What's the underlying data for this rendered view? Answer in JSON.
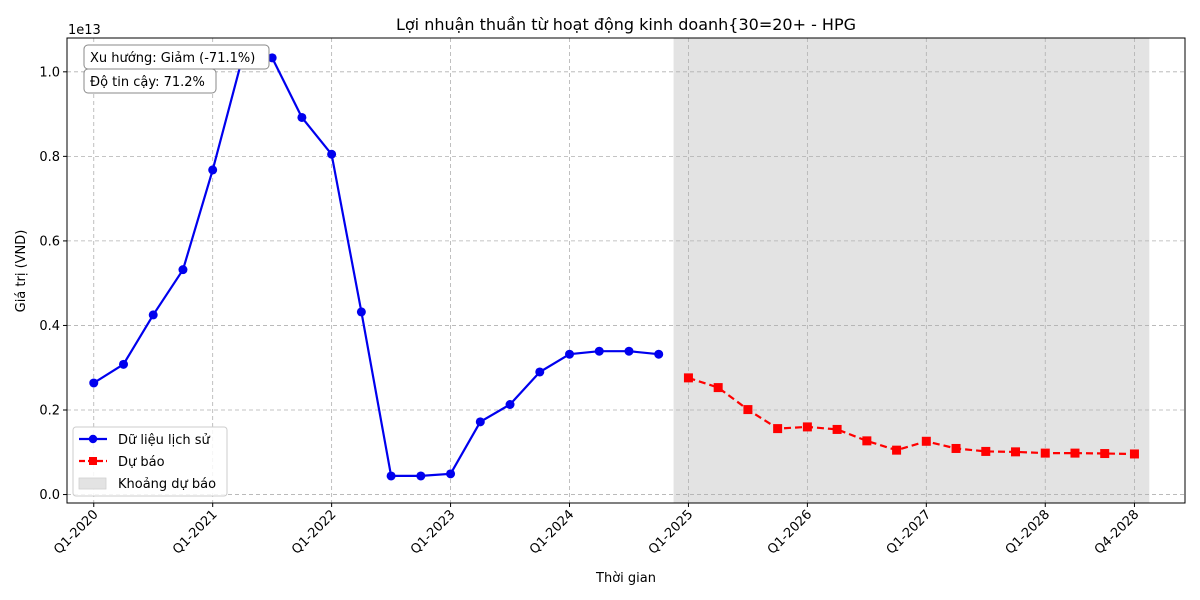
{
  "chart_data": {
    "type": "line",
    "title": "Lợi nhuận thuần từ hoạt động kinh doanh{30=20+ - HPG",
    "xlabel": "Thời gian",
    "ylabel": "Giá trị (VND)",
    "y_scale_label": "1e13",
    "y_multiplier": 10000000000000,
    "ylim": [
      -0.02,
      1.08
    ],
    "yticks": [
      0.0,
      0.2,
      0.4,
      0.6,
      0.8,
      1.0
    ],
    "ytick_labels": [
      "0.0",
      "0.2",
      "0.4",
      "0.6",
      "0.8",
      "1.0"
    ],
    "xlim": [
      -0.45,
      18.35
    ],
    "xticks": [
      {
        "x": 0,
        "label": "Q1-2020"
      },
      {
        "x": 2,
        "label": "Q1-2021"
      },
      {
        "x": 4,
        "label": "Q1-2022"
      },
      {
        "x": 6,
        "label": "Q1-2023"
      },
      {
        "x": 8,
        "label": "Q1-2024"
      },
      {
        "x": 10,
        "label": "Q1-2025"
      },
      {
        "x": 12,
        "label": "Q1-2026"
      },
      {
        "x": 14,
        "label": "Q1-2027"
      },
      {
        "x": 16,
        "label": "Q1-2028"
      },
      {
        "x": 17.5,
        "label": "Q4-2028"
      }
    ],
    "grid": true,
    "shaded_region": {
      "name": "Khoảng dự báo",
      "x_start": 9.75,
      "x_end": 17.75,
      "color": "#e3e3e3"
    },
    "series": [
      {
        "name": "Dữ liệu lịch sử",
        "color": "#0000ee",
        "marker": "circle",
        "dash": "solid",
        "x": [
          0,
          0.5,
          1,
          1.5,
          2,
          2.5,
          3,
          3.5,
          4,
          4.5,
          5,
          5.5,
          6,
          6.5,
          7,
          7.5,
          8,
          8.5,
          9,
          9.5
        ],
        "values": [
          0.264,
          0.308,
          0.425,
          0.532,
          0.768,
          1.033,
          1.033,
          0.892,
          0.805,
          0.432,
          0.044,
          0.044,
          0.049,
          0.172,
          0.213,
          0.29,
          0.332,
          0.339,
          0.339,
          0.332
        ]
      },
      {
        "name": "Dự báo",
        "color": "#ff0000",
        "marker": "square",
        "dash": "dashed",
        "x": [
          10,
          10.5,
          11,
          11.5,
          12,
          12.5,
          13,
          13.5,
          14,
          14.5,
          15,
          15.5,
          16,
          16.5,
          17,
          17.5
        ],
        "values": [
          0.276,
          0.253,
          0.201,
          0.156,
          0.16,
          0.154,
          0.127,
          0.105,
          0.126,
          0.109,
          0.102,
          0.101,
          0.098,
          0.098,
          0.097,
          0.096
        ]
      }
    ],
    "annotations": [
      "Xu hướng: Giảm (-71.1%)",
      "Độ tin cậy: 71.2%"
    ],
    "legend": {
      "placement": "lower-left",
      "entries": [
        "Dữ liệu lịch sử",
        "Dự báo",
        "Khoảng dự báo"
      ]
    }
  }
}
